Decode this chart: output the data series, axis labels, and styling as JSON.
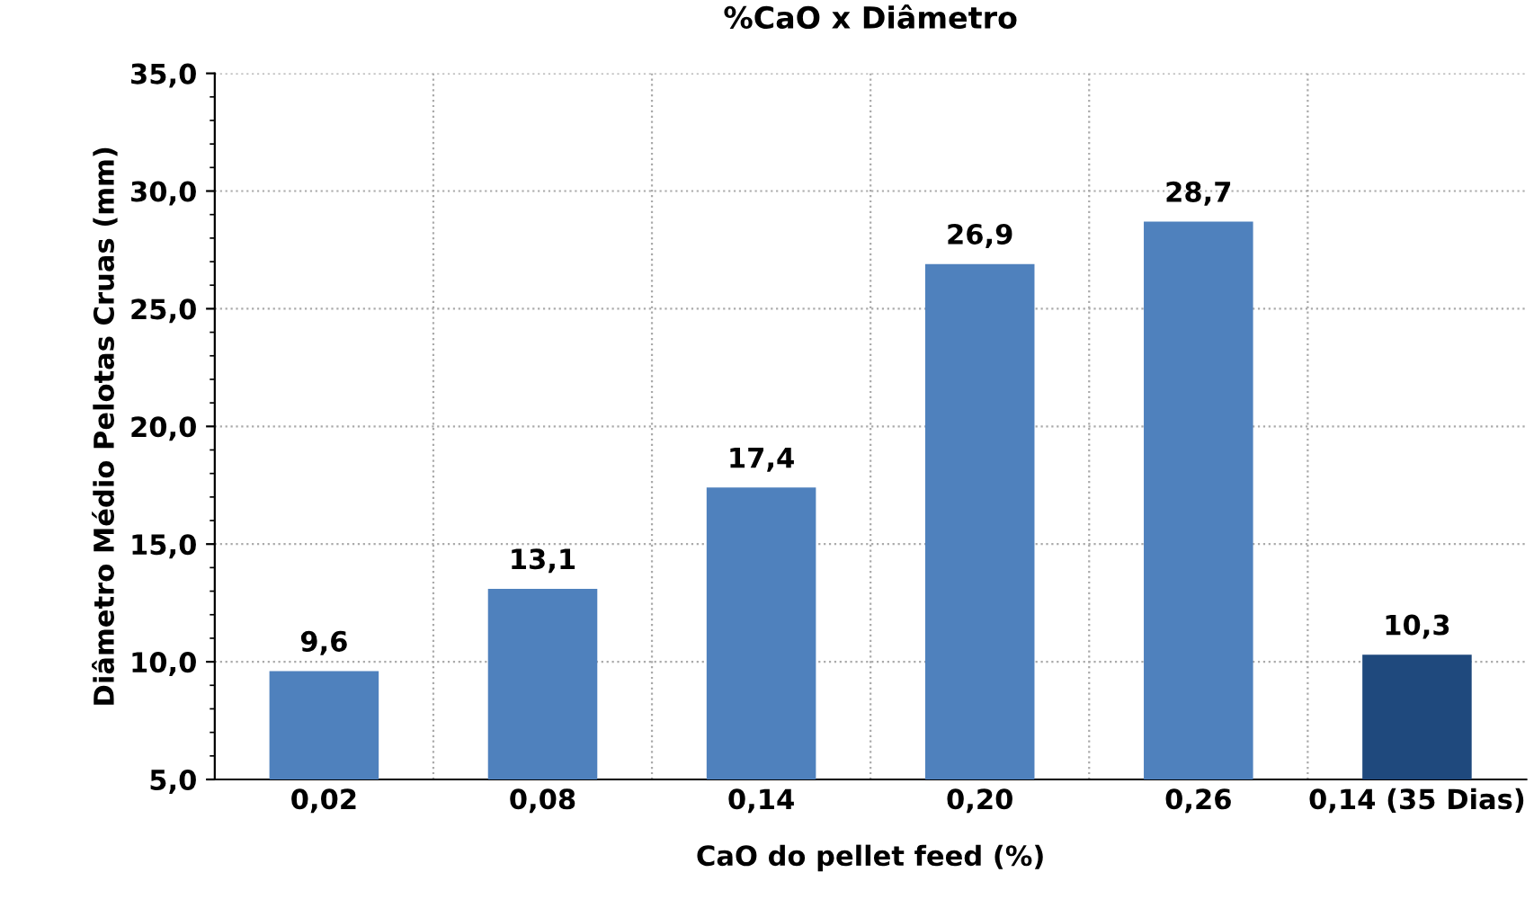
{
  "chart_data": {
    "type": "bar",
    "title": "%CaO x Diâmetro",
    "xlabel": "CaO do pellet feed (%)",
    "ylabel": "Diâmetro Médio Pelotas Cruas (mm)",
    "categories": [
      "0,02",
      "0,08",
      "0,14",
      "0,20",
      "0,26",
      "0,14 (35 Dias)"
    ],
    "values": [
      9.6,
      13.1,
      17.4,
      26.9,
      28.7,
      10.3
    ],
    "colors": [
      "#4f81bd",
      "#4f81bd",
      "#4f81bd",
      "#4f81bd",
      "#4f81bd",
      "#1f497d"
    ],
    "value_labels": [
      "9,6",
      "13,1",
      "17,4",
      "26,9",
      "28,7",
      "10,3"
    ],
    "ylim": [
      5,
      35
    ],
    "yticks": [
      {
        "value": 5,
        "label": "5,0"
      },
      {
        "value": 10,
        "label": "10,0"
      },
      {
        "value": 15,
        "label": "15,0"
      },
      {
        "value": 20,
        "label": "20,0"
      },
      {
        "value": 25,
        "label": "25,0"
      },
      {
        "value": 30,
        "label": "30,0"
      },
      {
        "value": 35,
        "label": "35,0"
      }
    ],
    "grid": true,
    "legend": false
  }
}
